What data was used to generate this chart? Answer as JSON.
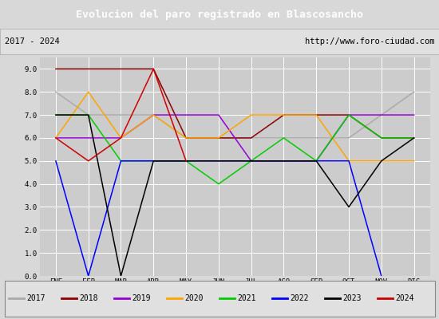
{
  "title": "Evolucion del paro registrado en Blascosancho",
  "subtitle_left": "2017 - 2024",
  "subtitle_right": "http://www.foro-ciudad.com",
  "months": [
    "ENE",
    "FEB",
    "MAR",
    "ABR",
    "MAY",
    "JUN",
    "JUL",
    "AGO",
    "SEP",
    "OCT",
    "NOV",
    "DIC"
  ],
  "series": {
    "2017": {
      "color": "#aaaaaa",
      "data": [
        8,
        7,
        7,
        7,
        6,
        6,
        6,
        6,
        6,
        6,
        7,
        8
      ]
    },
    "2018": {
      "color": "#8b0000",
      "data": [
        9,
        9,
        9,
        9,
        6,
        6,
        6,
        7,
        7,
        7,
        6,
        6
      ]
    },
    "2019": {
      "color": "#9400d3",
      "data": [
        6,
        6,
        6,
        7,
        7,
        7,
        5,
        5,
        5,
        7,
        7,
        7
      ]
    },
    "2020": {
      "color": "#ffa500",
      "data": [
        6,
        8,
        6,
        7,
        6,
        6,
        7,
        7,
        7,
        5,
        5,
        5
      ]
    },
    "2021": {
      "color": "#00cc00",
      "data": [
        7,
        7,
        5,
        5,
        5,
        4,
        5,
        6,
        5,
        7,
        6,
        6
      ]
    },
    "2022": {
      "color": "#0000ff",
      "data": [
        5,
        0,
        5,
        5,
        5,
        5,
        5,
        5,
        5,
        5,
        0,
        null
      ]
    },
    "2023": {
      "color": "#000000",
      "data": [
        7,
        7,
        0,
        5,
        5,
        5,
        5,
        5,
        5,
        3,
        5,
        6
      ]
    },
    "2024": {
      "color": "#cc0000",
      "data": [
        6,
        5,
        6,
        9,
        5,
        null,
        null,
        null,
        null,
        null,
        null,
        null
      ]
    }
  },
  "ylim": [
    0.0,
    9.5
  ],
  "yticks": [
    0.0,
    1.0,
    2.0,
    3.0,
    4.0,
    5.0,
    6.0,
    7.0,
    8.0,
    9.0
  ],
  "bg_color": "#d8d8d8",
  "plot_bg_color": "#cccccc",
  "title_bg_color": "#4472c4",
  "title_text_color": "#ffffff",
  "subtitle_bg_color": "#e0e0e0",
  "legend_bg_color": "#e0e0e0",
  "grid_color": "#ffffff",
  "figsize": [
    5.5,
    4.0
  ],
  "dpi": 100
}
